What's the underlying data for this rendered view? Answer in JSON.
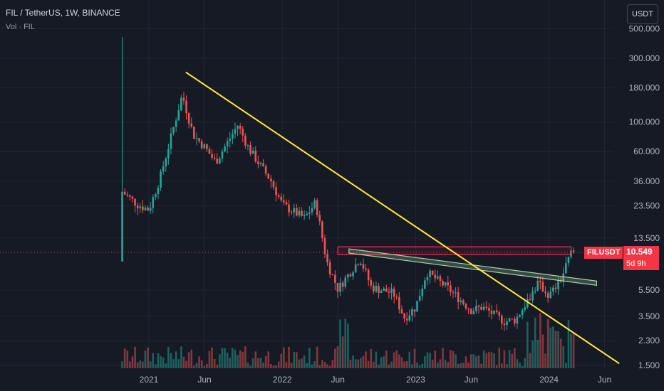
{
  "header": {
    "symbol_line": "FIL / TetherUS, 1W, BINANCE",
    "volume_label": "Vol · FIL"
  },
  "currency_button": "USDT",
  "price_tag": {
    "ticker": "FILUSDT",
    "price": "10.549",
    "countdown": "5d 9h"
  },
  "colors": {
    "background": "#161a25",
    "up": "#26a69a",
    "down": "#ef5350",
    "trendline_yellow": "#ffeb3b",
    "channel_green": "#a5d6a7",
    "resistance_red": "#f23645"
  },
  "chart_data": {
    "type": "candlestick",
    "y_scale": "log",
    "y_ticks": [
      "500.000",
      "300.000",
      "180.000",
      "100.000",
      "60.000",
      "36.000",
      "23.500",
      "13.500",
      "5.500",
      "3.500",
      "2.300",
      "1.500"
    ],
    "y_tick_values": [
      500,
      300,
      180,
      100,
      60,
      36,
      23.5,
      13.5,
      5.5,
      3.5,
      2.3,
      1.5
    ],
    "x_ticks": [
      "2021",
      "Jun",
      "2022",
      "Jun",
      "2023",
      "Jun",
      "2024",
      "Jun"
    ],
    "x_tick_dates": [
      "2021-01",
      "2021-06",
      "2022-01",
      "2022-06",
      "2023-01",
      "2023-06",
      "2024-01",
      "2024-06"
    ],
    "x_range": [
      "2020-10",
      "2024-07"
    ],
    "last_price": 10.549,
    "annotations": [
      {
        "type": "descending trendline",
        "from": {
          "date": "2021-04",
          "price": 236
        },
        "to": {
          "date": "2024-07",
          "price": 1.55
        }
      },
      {
        "type": "resistance zone",
        "from": "2022-06",
        "to": "2024-03",
        "low": 10.2,
        "high": 11.6
      },
      {
        "type": "channel",
        "from": {
          "date": "2022-07",
          "price": 10.8
        },
        "to": {
          "date": "2024-04",
          "price": 6.2
        }
      }
    ],
    "price_anchors": [
      {
        "date": "2020-10",
        "close": 33
      },
      {
        "date": "2020-12",
        "close": 24
      },
      {
        "date": "2021-01",
        "close": 22
      },
      {
        "date": "2021-02",
        "close": 38
      },
      {
        "date": "2021-04",
        "close": 160
      },
      {
        "date": "2021-05",
        "close": 80
      },
      {
        "date": "2021-06",
        "close": 65
      },
      {
        "date": "2021-07",
        "close": 50
      },
      {
        "date": "2021-09",
        "close": 95
      },
      {
        "date": "2021-10",
        "close": 63
      },
      {
        "date": "2021-12",
        "close": 36
      },
      {
        "date": "2022-01",
        "close": 24
      },
      {
        "date": "2022-03",
        "close": 19
      },
      {
        "date": "2022-04",
        "close": 25
      },
      {
        "date": "2022-05",
        "close": 9
      },
      {
        "date": "2022-06",
        "close": 5.6
      },
      {
        "date": "2022-08",
        "close": 9.5
      },
      {
        "date": "2022-09",
        "close": 5.8
      },
      {
        "date": "2022-11",
        "close": 5.2
      },
      {
        "date": "2022-12",
        "close": 3.4
      },
      {
        "date": "2023-01",
        "close": 4.1
      },
      {
        "date": "2023-02",
        "close": 7.5
      },
      {
        "date": "2023-04",
        "close": 5.6
      },
      {
        "date": "2023-06",
        "close": 3.9
      },
      {
        "date": "2023-07",
        "close": 4.1
      },
      {
        "date": "2023-09",
        "close": 3.2
      },
      {
        "date": "2023-10",
        "close": 3.3
      },
      {
        "date": "2023-11",
        "close": 4.5
      },
      {
        "date": "2023-12",
        "close": 6.2
      },
      {
        "date": "2024-01",
        "close": 5.0
      },
      {
        "date": "2024-02",
        "close": 6.4
      },
      {
        "date": "2024-03",
        "close": 10.549
      }
    ]
  }
}
